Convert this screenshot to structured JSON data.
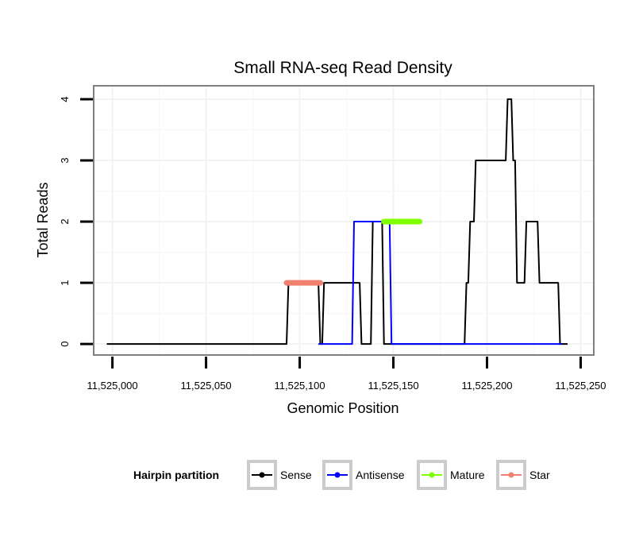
{
  "chart_data": {
    "type": "line",
    "title": "Small RNA-seq Read Density",
    "xlabel": "Genomic Position",
    "ylabel": "Total Reads",
    "xlim": [
      11524990,
      11525257
    ],
    "ylim": [
      -0.18,
      4.22
    ],
    "x_ticks": [
      11525000,
      11525050,
      11525100,
      11525150,
      11525200,
      11525250
    ],
    "x_tick_labels": [
      "11,525,000",
      "11,525,050",
      "11,525,100",
      "11,525,150",
      "11,525,200",
      "11,525,250"
    ],
    "y_ticks": [
      0,
      1,
      2,
      3,
      4
    ],
    "y_tick_labels": [
      "0",
      "1",
      "2",
      "3",
      "4"
    ],
    "grid": true,
    "legend": {
      "title": "Hairpin partition",
      "position": "bottom",
      "items": [
        {
          "label": "Sense",
          "color": "#000000"
        },
        {
          "label": "Antisense",
          "color": "#0000ff"
        },
        {
          "label": "Mature",
          "color": "#7fff00"
        },
        {
          "label": "Star",
          "color": "#f08070"
        }
      ]
    },
    "series": [
      {
        "name": "Sense",
        "color": "#000000",
        "x": [
          11524997,
          11525093,
          11525094,
          11525110,
          11525111,
          11525112,
          11525113,
          11525132,
          11525133,
          11525138,
          11525139,
          11525144,
          11525145,
          11525164,
          11525165,
          11525188,
          11525189,
          11525190,
          11525191,
          11525193,
          11525194,
          11525202,
          11525203,
          11525210,
          11525211,
          11525213,
          11525214,
          11525215,
          11525216,
          11525220,
          11525221,
          11525227,
          11525228,
          11525238,
          11525239,
          11525243
        ],
        "values": [
          0,
          0,
          1,
          1,
          0,
          0,
          1,
          1,
          0,
          0,
          2,
          2,
          0,
          0,
          0,
          0,
          1,
          1,
          2,
          2,
          3,
          3,
          3,
          3,
          4,
          4,
          3,
          3,
          1,
          1,
          2,
          2,
          1,
          1,
          0,
          0
        ]
      },
      {
        "name": "Antisense",
        "color": "#0000ff",
        "x": [
          11525110,
          11525128,
          11525129,
          11525148,
          11525149,
          11525240
        ],
        "values": [
          0,
          0,
          2,
          2,
          0,
          0
        ]
      },
      {
        "name": "Mature",
        "color": "#7fff00",
        "x": [
          11525145,
          11525164
        ],
        "values": [
          2,
          2
        ]
      },
      {
        "name": "Star",
        "color": "#f08070",
        "x": [
          11525093,
          11525111
        ],
        "values": [
          1,
          1
        ]
      }
    ]
  }
}
